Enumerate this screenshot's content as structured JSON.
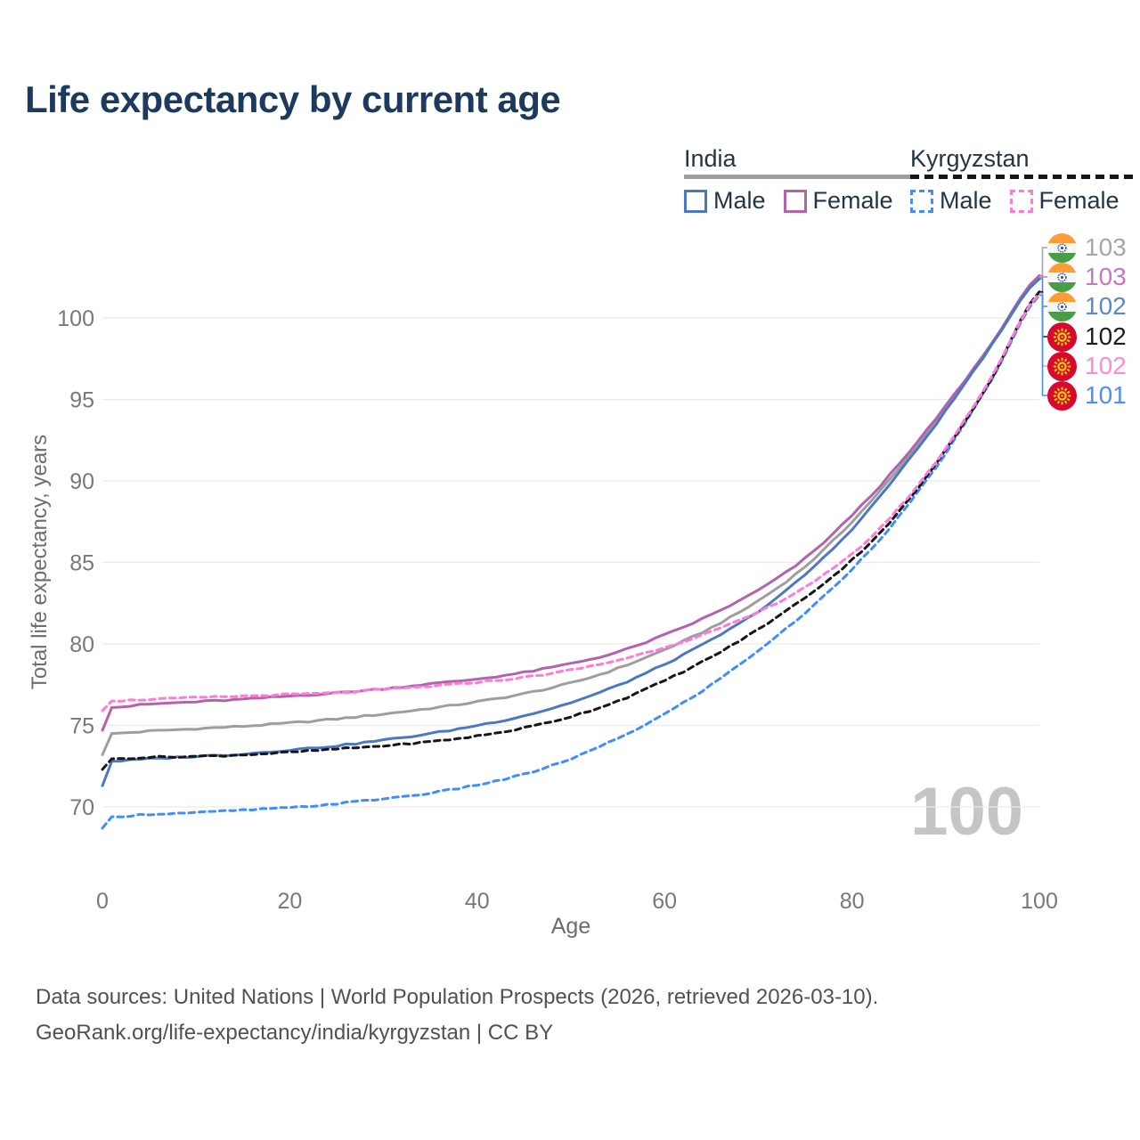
{
  "title": "Life expectancy by current age",
  "watermark_age": "100",
  "legend": {
    "groups": [
      {
        "country": "India",
        "line_color": "#9e9e9e",
        "line_dashed": false,
        "items": [
          {
            "label": "Male",
            "color": "#4b79c1",
            "dashed": false
          },
          {
            "label": "Female",
            "color": "#b362ac",
            "dashed": false
          }
        ]
      },
      {
        "country": "Kyrgyzstan",
        "line_color": "#161616",
        "line_dashed": true,
        "items": [
          {
            "label": "Male",
            "color": "#418efb",
            "dashed": true
          },
          {
            "label": "Female",
            "color": "#ff7ad9",
            "dashed": true
          }
        ]
      }
    ]
  },
  "chart_data": {
    "type": "line",
    "title": "Life expectancy by current age",
    "xlabel": "Age",
    "ylabel": "Total life expectancy, years",
    "xlim": [
      0,
      100
    ],
    "ylim": [
      68,
      103
    ],
    "xticks": [
      0,
      20,
      40,
      60,
      80,
      100
    ],
    "yticks": [
      70,
      75,
      80,
      85,
      90,
      95,
      100
    ],
    "grid": "horizontal",
    "legend_position": "top-right",
    "x": [
      0,
      1,
      5,
      10,
      15,
      20,
      25,
      30,
      35,
      40,
      45,
      50,
      55,
      60,
      65,
      70,
      75,
      80,
      85,
      90,
      95,
      100
    ],
    "series": [
      {
        "name": "India — Both sexes",
        "country": "India",
        "sex": "Both",
        "color": "#9e9e9e",
        "dashed": false,
        "flag": "india",
        "end_label": "103",
        "end_label_color": "#a6a6a6",
        "values": [
          73.2,
          74.5,
          74.65,
          74.8,
          74.95,
          75.15,
          75.4,
          75.7,
          76.05,
          76.45,
          76.95,
          77.6,
          78.5,
          79.65,
          81.0,
          82.65,
          84.75,
          87.5,
          90.75,
          94.45,
          98.45,
          102.5
        ]
      },
      {
        "name": "India — Female",
        "country": "India",
        "sex": "Female",
        "color": "#b362ac",
        "dashed": false,
        "flag": "india",
        "end_label": "103",
        "end_label_color": "#c478be",
        "values": [
          74.7,
          76.1,
          76.3,
          76.45,
          76.6,
          76.8,
          77.0,
          77.25,
          77.55,
          77.85,
          78.25,
          78.8,
          79.5,
          80.55,
          81.8,
          83.3,
          85.25,
          87.9,
          91.0,
          94.6,
          98.5,
          102.6
        ]
      },
      {
        "name": "India — Male",
        "country": "India",
        "sex": "Male",
        "color": "#4b79c1",
        "dashed": false,
        "flag": "india",
        "end_label": "102",
        "end_label_color": "#5b87cd",
        "values": [
          71.3,
          72.8,
          72.95,
          73.1,
          73.25,
          73.5,
          73.75,
          74.1,
          74.5,
          75.0,
          75.6,
          76.4,
          77.45,
          78.75,
          80.25,
          82.0,
          84.25,
          87.05,
          90.5,
          94.3,
          98.4,
          102.4
        ]
      },
      {
        "name": "Kyrgyzstan — Both sexes",
        "country": "Kyrgyzstan",
        "sex": "Both",
        "color": "#161616",
        "dashed": true,
        "flag": "kyrgyzstan",
        "end_label": "102",
        "end_label_color": "#1d1d1d",
        "values": [
          72.3,
          72.95,
          73.05,
          73.1,
          73.2,
          73.35,
          73.55,
          73.75,
          74.0,
          74.35,
          74.85,
          75.55,
          76.5,
          77.75,
          79.2,
          80.9,
          82.85,
          85.15,
          88.1,
          91.9,
          96.4,
          101.6
        ]
      },
      {
        "name": "Kyrgyzstan — Female",
        "country": "Kyrgyzstan",
        "sex": "Female",
        "color": "#ff7ad9",
        "dashed": true,
        "flag": "kyrgyzstan",
        "end_label": "102",
        "end_label_color": "#ff8ad5",
        "values": [
          75.9,
          76.5,
          76.6,
          76.7,
          76.8,
          76.9,
          77.0,
          77.2,
          77.4,
          77.65,
          77.95,
          78.4,
          79.0,
          79.8,
          80.75,
          81.95,
          83.5,
          85.5,
          88.35,
          92.0,
          96.5,
          101.5
        ]
      },
      {
        "name": "Kyrgyzstan — Male",
        "country": "Kyrgyzstan",
        "sex": "Male",
        "color": "#418efb",
        "dashed": true,
        "flag": "kyrgyzstan",
        "end_label": "101",
        "end_label_color": "#4b90f6",
        "values": [
          68.7,
          69.4,
          69.55,
          69.65,
          69.8,
          69.95,
          70.2,
          70.5,
          70.85,
          71.35,
          72.0,
          72.95,
          74.2,
          75.7,
          77.5,
          79.6,
          81.9,
          84.6,
          87.8,
          91.7,
          96.3,
          101.4
        ]
      }
    ]
  },
  "footer": {
    "line1": "Data sources: United Nations | World Population Prospects (2026, retrieved 2026-03-10).",
    "line2": "GeoRank.org/life-expectancy/india/kyrgyzstan | CC BY"
  }
}
